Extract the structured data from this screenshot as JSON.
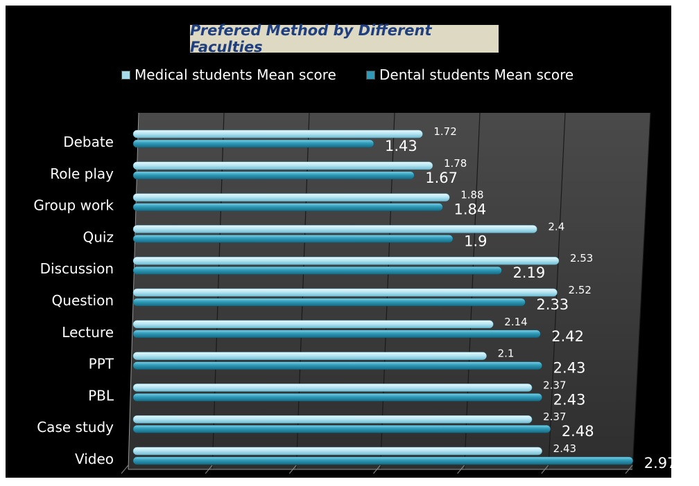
{
  "chart_data": {
    "type": "bar",
    "orientation": "horizontal",
    "title": "Prefered Method by Different Faculties",
    "categories": [
      "Debate",
      "Role play",
      "Group work",
      "Quiz",
      "Discussion",
      "Question",
      "Lecture",
      "PPT",
      "PBL",
      "Case study",
      "Video"
    ],
    "series": [
      {
        "name": "Medical students Mean score",
        "values": [
          1.72,
          1.78,
          1.88,
          2.4,
          2.53,
          2.52,
          2.14,
          2.1,
          2.37,
          2.37,
          2.43
        ],
        "color": "#a7dbea"
      },
      {
        "name": "Dental students Mean score",
        "values": [
          1.43,
          1.67,
          1.84,
          1.9,
          2.19,
          2.33,
          2.42,
          2.43,
          2.43,
          2.48,
          2.97
        ],
        "color": "#2f9ab8"
      }
    ],
    "xlim": [
      0,
      3
    ],
    "grid": "vertical",
    "legend": "top"
  }
}
